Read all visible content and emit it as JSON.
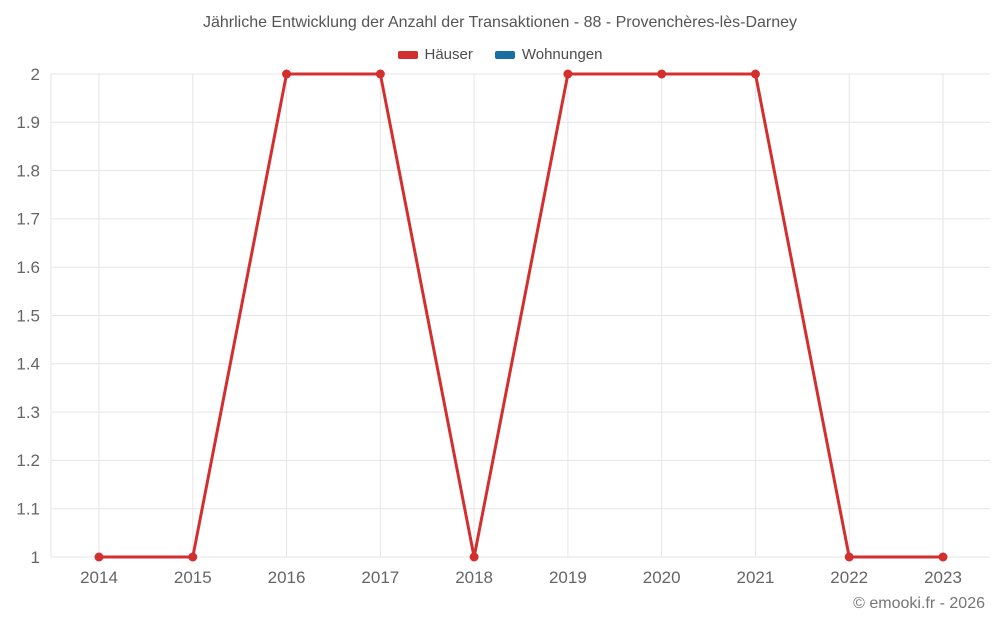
{
  "title": "Jährliche Entwicklung der Anzahl der Transaktionen - 88 - Provenchères-lès-Darney",
  "footer": {
    "copyright": "© emooki.fr - 2026"
  },
  "colors": {
    "series_hauser": "#d32f2f",
    "series_wohnungen": "#176fa3",
    "grid": "#e6e6e6",
    "axis_text": "#666666",
    "title_text": "#555555",
    "copyright_text": "#757575"
  },
  "chart_data": {
    "type": "line",
    "title": "Jährliche Entwicklung der Anzahl der Transaktionen - 88 - Provenchères-lès-Darney",
    "x": [
      2014,
      2015,
      2016,
      2017,
      2018,
      2019,
      2020,
      2021,
      2022,
      2023
    ],
    "xtick_labels": [
      "2014",
      "2015",
      "2016",
      "2017",
      "2018",
      "2019",
      "2020",
      "2021",
      "2022",
      "2023"
    ],
    "series": [
      {
        "name": "Häuser",
        "color": "#d32f2f",
        "values": [
          1,
          1,
          2,
          2,
          1,
          2,
          2,
          2,
          1,
          1
        ]
      },
      {
        "name": "Wohnungen",
        "color": "#176fa3",
        "values": []
      }
    ],
    "ylim": [
      1,
      2
    ],
    "yticks": [
      1,
      1.1,
      1.2,
      1.3,
      1.4,
      1.5,
      1.6,
      1.7,
      1.8,
      1.9,
      2
    ],
    "ytick_labels": [
      "1",
      "1.1",
      "1.2",
      "1.3",
      "1.4",
      "1.5",
      "1.6",
      "1.7",
      "1.8",
      "1.9",
      "2"
    ],
    "grid": true,
    "legend_position": "top",
    "marker": "circle"
  }
}
